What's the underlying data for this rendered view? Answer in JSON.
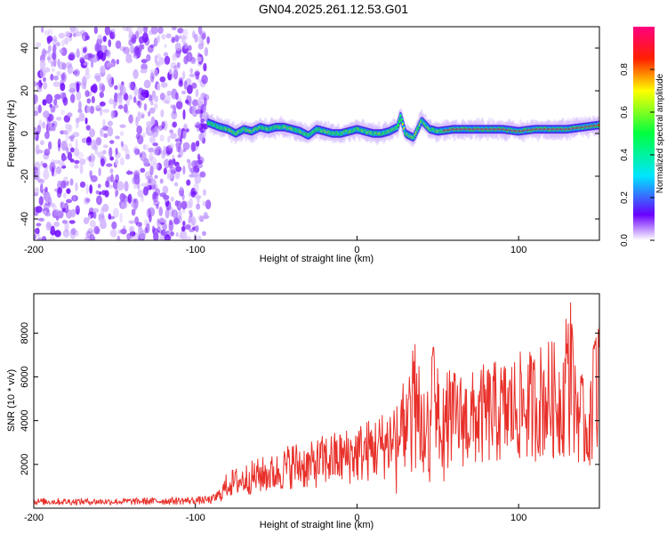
{
  "title": "GN04.2025.261.12.53.G01",
  "chart_data": [
    {
      "type": "heatmap",
      "xlabel": "Height of straight line (km)",
      "ylabel": "Frequency (Hz)",
      "xlim": [
        -200,
        150
      ],
      "ylim": [
        -50,
        50
      ],
      "xticks": [
        "-200",
        "-100",
        "0",
        "100"
      ],
      "yticks": [
        "-40",
        "-20",
        "0",
        "20",
        "40"
      ],
      "colorbar": {
        "label": "Normalized spectral amplitude",
        "range": [
          0,
          1
        ],
        "ticks": [
          "0.0",
          "0.2",
          "0.4",
          "0.6",
          "0.8"
        ],
        "colors": [
          "#ffffff",
          "#6a00ff",
          "#00e5ff",
          "#00ff40",
          "#ffff00",
          "#ff2000",
          "#ff0080"
        ]
      },
      "noise_region": {
        "x_from": -200,
        "x_to": -92,
        "y_from": -50,
        "y_to": 50
      },
      "ridge": {
        "x": [
          -92,
          -85,
          -80,
          -75,
          -70,
          -65,
          -60,
          -55,
          -50,
          -45,
          -40,
          -35,
          -30,
          -25,
          -20,
          -15,
          -10,
          -5,
          0,
          5,
          10,
          15,
          20,
          25,
          27,
          30,
          35,
          40,
          45,
          50,
          60,
          70,
          80,
          90,
          100,
          110,
          120,
          130,
          140,
          150
        ],
        "y": [
          5,
          3,
          2,
          0,
          2,
          1,
          3,
          2,
          3,
          3,
          2,
          1,
          -1,
          2,
          1,
          0,
          0,
          1,
          2,
          1,
          0,
          0,
          1,
          3,
          8,
          0,
          -2,
          6,
          2,
          1,
          2,
          2,
          2,
          2,
          1,
          2,
          2,
          2,
          3,
          4
        ]
      }
    },
    {
      "type": "line",
      "xlabel": "Height of straight line (km)",
      "ylabel": "SNR (10 * v/v)",
      "xlim": [
        -200,
        150
      ],
      "ylim": [
        0,
        9800
      ],
      "xticks": [
        "-200",
        "-100",
        "0",
        "100"
      ],
      "yticks": [
        "2000",
        "4000",
        "6000",
        "8000"
      ],
      "line_color": "#e8302a",
      "envelope": {
        "x": [
          -200,
          -150,
          -100,
          -90,
          -85,
          -80,
          -70,
          -60,
          -50,
          -40,
          -30,
          -20,
          -10,
          0,
          10,
          20,
          30,
          35,
          40,
          45,
          50,
          55,
          60,
          70,
          80,
          90,
          100,
          110,
          115,
          120,
          125,
          130,
          133,
          135,
          140,
          145,
          150
        ],
        "y": [
          300,
          300,
          350,
          380,
          600,
          1100,
          1300,
          1500,
          1600,
          2000,
          1900,
          2200,
          2300,
          2500,
          2700,
          3000,
          3300,
          4500,
          3500,
          3500,
          4000,
          4100,
          4100,
          4000,
          4300,
          4400,
          4600,
          4700,
          5000,
          5000,
          4800,
          5500,
          4200,
          5000,
          3800,
          3800,
          4500
        ]
      },
      "spikes": [
        {
          "x": 35,
          "y": 7500
        },
        {
          "x": 47,
          "y": 7400
        },
        {
          "x": 130,
          "y": 8800
        },
        {
          "x": 133,
          "y": 9700
        },
        {
          "x": 147,
          "y": 8000
        },
        {
          "x": 150,
          "y": 8400
        }
      ]
    }
  ]
}
